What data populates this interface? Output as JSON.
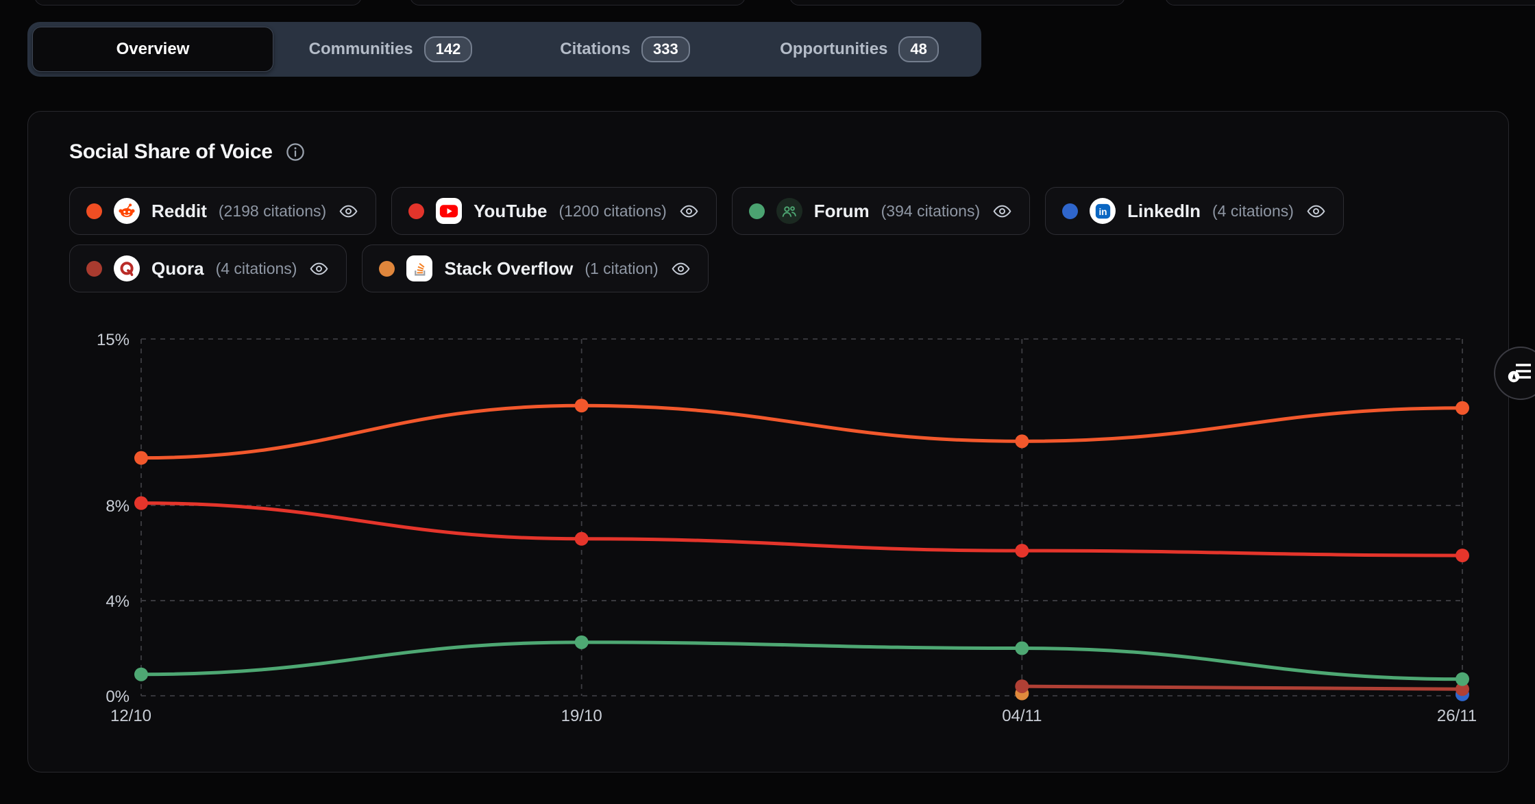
{
  "tabs": {
    "items": [
      {
        "label": "Overview",
        "active": true
      },
      {
        "label": "Communities",
        "count": "142"
      },
      {
        "label": "Citations",
        "count": "333"
      },
      {
        "label": "Opportunities",
        "count": "48"
      }
    ]
  },
  "card": {
    "title": "Social Share of Voice"
  },
  "legend": [
    {
      "platform": "Reddit",
      "count_label": "(2198 citations)",
      "dot_color": "#F04E23",
      "icon": "reddit-icon"
    },
    {
      "platform": "YouTube",
      "count_label": "(1200 citations)",
      "dot_color": "#E3342B",
      "icon": "youtube-icon"
    },
    {
      "platform": "Forum",
      "count_label": "(394 citations)",
      "dot_color": "#4BA371",
      "icon": "forum-icon"
    },
    {
      "platform": "LinkedIn",
      "count_label": "(4 citations)",
      "dot_color": "#2F66CC",
      "icon": "linkedin-icon"
    },
    {
      "platform": "Quora",
      "count_label": "(4 citations)",
      "dot_color": "#A93B2F",
      "icon": "quora-icon"
    },
    {
      "platform": "Stack Overflow",
      "count_label": "(1 citation)",
      "dot_color": "#DF863C",
      "icon": "stackoverflow-icon"
    }
  ],
  "chart_data": {
    "type": "line",
    "x": [
      "12/10",
      "19/10",
      "04/11",
      "26/11"
    ],
    "y_ticks": [
      "0%",
      "4%",
      "8%",
      "15%"
    ],
    "y_tick_values": [
      0,
      4,
      8,
      15
    ],
    "ylim": [
      0,
      15
    ],
    "grid": "dashed",
    "legend_position": "top",
    "series": [
      {
        "name": "Reddit",
        "color": "#F2582C",
        "values": [
          10.0,
          12.2,
          10.7,
          12.1
        ]
      },
      {
        "name": "YouTube",
        "color": "#E5352B",
        "values": [
          8.1,
          6.6,
          6.1,
          5.9
        ]
      },
      {
        "name": "Forum",
        "color": "#4EA873",
        "values": [
          0.9,
          2.25,
          2.0,
          0.7
        ]
      },
      {
        "name": "Quora",
        "color": "#B04035",
        "values": [
          null,
          null,
          0.4,
          0.28
        ]
      },
      {
        "name": "Stack Overflow",
        "color": "#E08A3C",
        "values": [
          null,
          null,
          0.1,
          null
        ]
      },
      {
        "name": "LinkedIn",
        "color": "#2F66CC",
        "values": [
          null,
          null,
          null,
          0.06
        ]
      }
    ]
  }
}
